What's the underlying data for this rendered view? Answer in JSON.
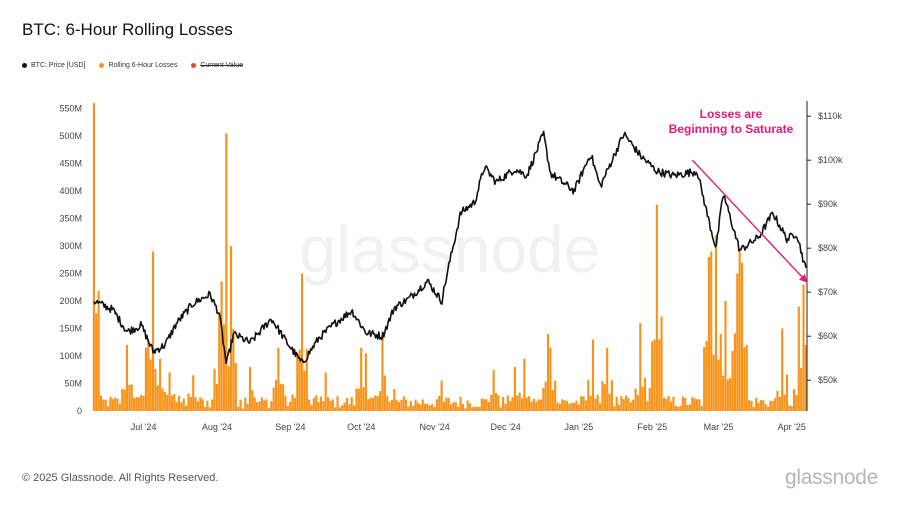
{
  "header": {
    "title": "BTC: 6-Hour Rolling Losses"
  },
  "legend": {
    "items": [
      {
        "label": "BTC: Price [USD]",
        "color": "#111111",
        "strike": false
      },
      {
        "label": "Rolling 6-Hour Losses",
        "color": "#f7931a",
        "strike": false
      },
      {
        "label": "Current Value",
        "color": "#e0492f",
        "strike": true
      }
    ]
  },
  "footer": {
    "copyright": "© 2025 Glassnode. All Rights Reserved.",
    "brand": "glassnode"
  },
  "watermark": "glassnode",
  "annotation": {
    "line1": "Losses are",
    "line2": "Beginning to Saturate",
    "color": "#e5197b"
  },
  "colors": {
    "price": "#111111",
    "losses": "#f7931a",
    "background": "#ffffff"
  },
  "chart_data": {
    "type": "bar+line",
    "title": "BTC: 6-Hour Rolling Losses",
    "x_ticks": [
      "Jul '24",
      "Aug '24",
      "Sep '24",
      "Oct '24",
      "Nov '24",
      "Dec '24",
      "Jan '25",
      "Feb '25",
      "Mar '25",
      "Apr '25"
    ],
    "x_range": [
      "2024-06-10",
      "2025-04-07"
    ],
    "left_axis": {
      "ticks": [
        "0",
        "50M",
        "100M",
        "150M",
        "200M",
        "250M",
        "300M",
        "350M",
        "400M",
        "450M",
        "500M",
        "550M"
      ],
      "ylim": [
        0,
        560000000
      ]
    },
    "right_axis": {
      "ticks": [
        "$50k",
        "$60k",
        "$70k",
        "$80k",
        "$90k",
        "$100k",
        "$110k"
      ],
      "ylim": [
        43000,
        113000
      ],
      "log": false
    },
    "series": [
      {
        "name": "BTC: Price [USD]",
        "axis": "right",
        "points": [
          [
            "2024-06-10",
            68000
          ],
          [
            "2024-06-18",
            66000
          ],
          [
            "2024-06-24",
            61000
          ],
          [
            "2024-06-30",
            62500
          ],
          [
            "2024-07-05",
            56500
          ],
          [
            "2024-07-10",
            58000
          ],
          [
            "2024-07-15",
            63000
          ],
          [
            "2024-07-22",
            67500
          ],
          [
            "2024-07-29",
            69500
          ],
          [
            "2024-08-02",
            65000
          ],
          [
            "2024-08-05",
            53500
          ],
          [
            "2024-08-08",
            60500
          ],
          [
            "2024-08-15",
            58500
          ],
          [
            "2024-08-24",
            64000
          ],
          [
            "2024-08-30",
            59000
          ],
          [
            "2024-09-06",
            53800
          ],
          [
            "2024-09-13",
            59500
          ],
          [
            "2024-09-20",
            63000
          ],
          [
            "2024-09-27",
            65800
          ],
          [
            "2024-10-03",
            60800
          ],
          [
            "2024-10-10",
            60000
          ],
          [
            "2024-10-15",
            66500
          ],
          [
            "2024-10-21",
            68500
          ],
          [
            "2024-10-29",
            72500
          ],
          [
            "2024-11-04",
            68000
          ],
          [
            "2024-11-07",
            76000
          ],
          [
            "2024-11-12",
            88000
          ],
          [
            "2024-11-18",
            90500
          ],
          [
            "2024-11-22",
            98500
          ],
          [
            "2024-11-27",
            95000
          ],
          [
            "2024-12-05",
            98000
          ],
          [
            "2024-12-10",
            96500
          ],
          [
            "2024-12-17",
            106000
          ],
          [
            "2024-12-20",
            97000
          ],
          [
            "2024-12-30",
            93000
          ],
          [
            "2025-01-06",
            101500
          ],
          [
            "2025-01-10",
            94000
          ],
          [
            "2025-01-20",
            106000
          ],
          [
            "2025-01-27",
            101000
          ],
          [
            "2025-02-03",
            97500
          ],
          [
            "2025-02-10",
            96500
          ],
          [
            "2025-02-20",
            97500
          ],
          [
            "2025-02-25",
            86000
          ],
          [
            "2025-02-28",
            80000
          ],
          [
            "2025-03-03",
            92500
          ],
          [
            "2025-03-10",
            79500
          ],
          [
            "2025-03-18",
            82500
          ],
          [
            "2025-03-24",
            88000
          ],
          [
            "2025-03-30",
            82000
          ],
          [
            "2025-04-03",
            83500
          ],
          [
            "2025-04-07",
            75000
          ]
        ]
      },
      {
        "name": "Rolling 6-Hour Losses",
        "axis": "left",
        "base_level": 15000000,
        "spikes": [
          [
            "2024-06-10",
            560000000
          ],
          [
            "2024-06-24",
            120000000
          ],
          [
            "2024-07-02",
            115000000
          ],
          [
            "2024-07-05",
            290000000
          ],
          [
            "2024-07-08",
            95000000
          ],
          [
            "2024-07-12",
            70000000
          ],
          [
            "2024-07-22",
            65000000
          ],
          [
            "2024-08-02",
            180000000
          ],
          [
            "2024-08-05",
            505000000
          ],
          [
            "2024-08-07",
            300000000
          ],
          [
            "2024-08-15",
            80000000
          ],
          [
            "2024-08-27",
            115000000
          ],
          [
            "2024-09-04",
            105000000
          ],
          [
            "2024-09-06",
            250000000
          ],
          [
            "2024-09-16",
            70000000
          ],
          [
            "2024-10-01",
            115000000
          ],
          [
            "2024-10-03",
            105000000
          ],
          [
            "2024-10-10",
            145000000
          ],
          [
            "2024-10-15",
            40000000
          ],
          [
            "2024-11-04",
            55000000
          ],
          [
            "2024-11-26",
            75000000
          ],
          [
            "2024-12-05",
            80000000
          ],
          [
            "2024-12-09",
            95000000
          ],
          [
            "2024-12-19",
            140000000
          ],
          [
            "2024-12-20",
            115000000
          ],
          [
            "2025-01-07",
            130000000
          ],
          [
            "2025-01-13",
            115000000
          ],
          [
            "2025-01-27",
            160000000
          ],
          [
            "2025-02-02",
            130000000
          ],
          [
            "2025-02-03",
            375000000
          ],
          [
            "2025-02-25",
            280000000
          ],
          [
            "2025-02-26",
            290000000
          ],
          [
            "2025-02-28",
            320000000
          ],
          [
            "2025-03-04",
            200000000
          ],
          [
            "2025-03-09",
            250000000
          ],
          [
            "2025-03-10",
            290000000
          ],
          [
            "2025-03-11",
            270000000
          ],
          [
            "2025-03-28",
            150000000
          ],
          [
            "2025-04-04",
            190000000
          ],
          [
            "2025-04-06",
            230000000
          ],
          [
            "2025-04-07",
            120000000
          ]
        ]
      }
    ],
    "annotation_arrow": {
      "from": [
        "2025-02-18",
        100000
      ],
      "to": [
        "2025-04-07",
        72500
      ]
    }
  }
}
